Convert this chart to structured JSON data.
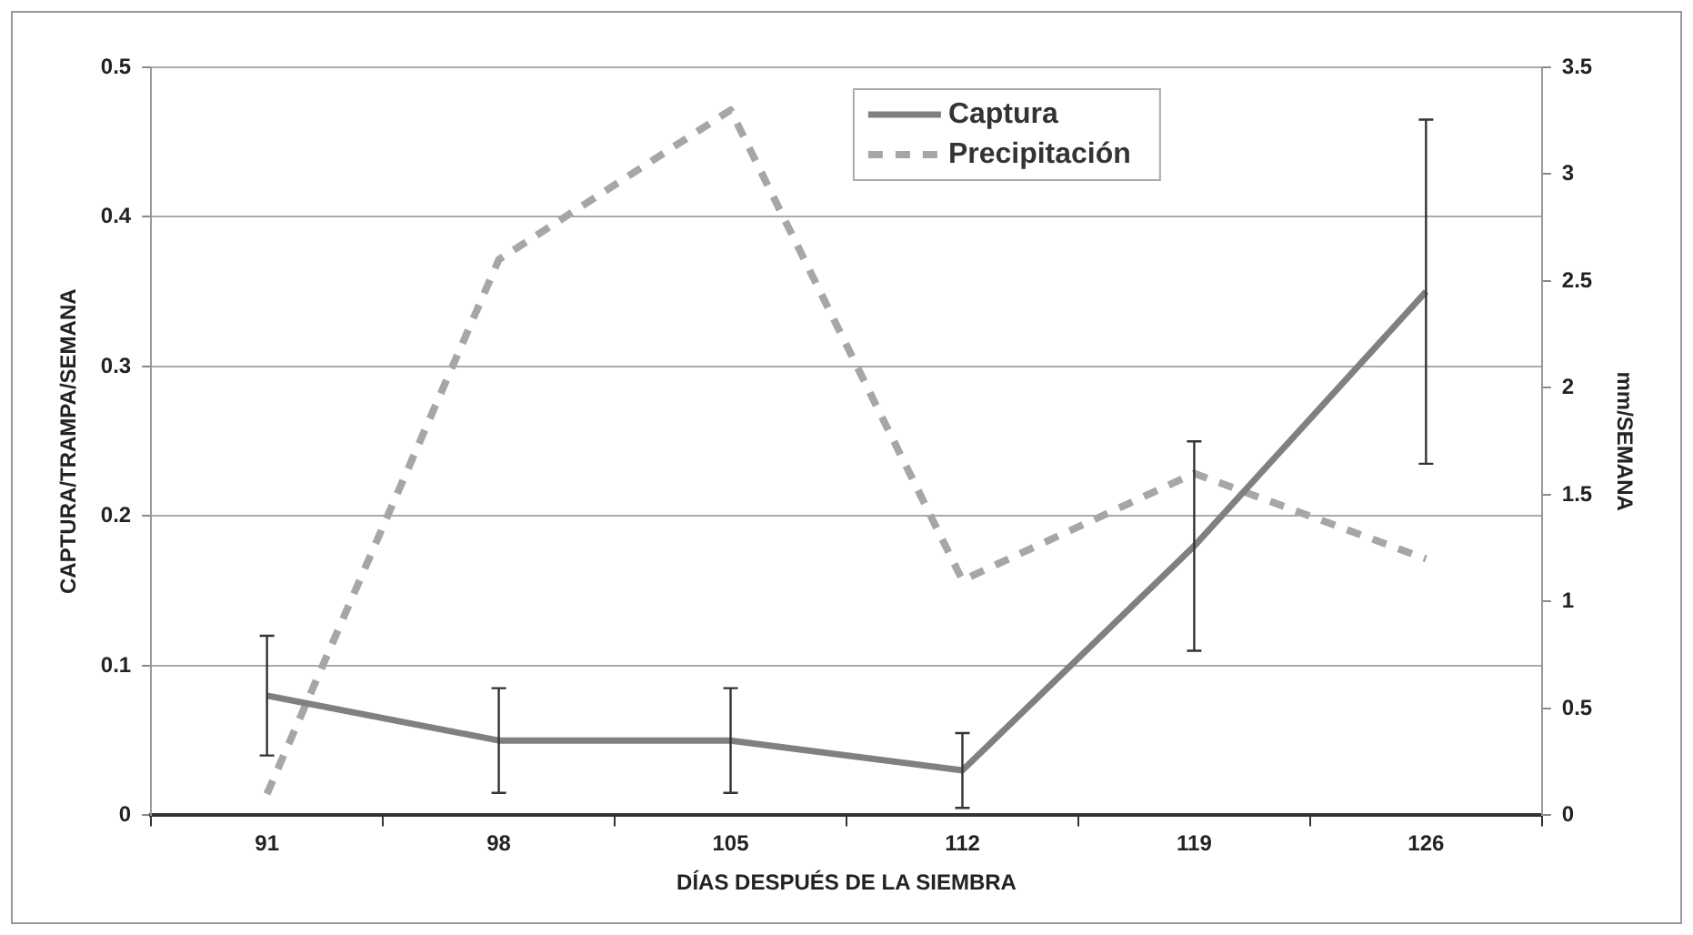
{
  "chart_data": {
    "type": "line",
    "xlabel": "DÍAS DESPUÉS DE LA SIEMBRA",
    "ylabel": "CAPTURA/TRAMPA/SEMANA",
    "y2label": "mm/SEMANA",
    "categories": [
      "91",
      "98",
      "105",
      "112",
      "119",
      "126"
    ],
    "series": [
      {
        "name": "Captura",
        "color": "#808080",
        "line_style": "solid",
        "values": [
          0.08,
          0.05,
          0.05,
          0.03,
          0.18,
          0.35
        ],
        "errors": [
          0.04,
          0.035,
          0.035,
          0.025,
          0.07,
          0.115
        ]
      },
      {
        "name": "Precipitación",
        "color": "#a6a6a6",
        "line_style": "dashed",
        "axis": "y2",
        "values": [
          0.1,
          2.6,
          3.3,
          1.1,
          1.6,
          1.2
        ]
      }
    ],
    "ylim": [
      0,
      0.5
    ],
    "yticks": [
      0,
      0.1,
      0.2,
      0.3,
      0.4,
      0.5
    ],
    "y2lim": [
      0,
      3.5
    ],
    "y2ticks": [
      0,
      0.5,
      1,
      1.5,
      2,
      2.5,
      3,
      3.5
    ],
    "grid": "y",
    "legend": "top right",
    "marker": "none"
  }
}
